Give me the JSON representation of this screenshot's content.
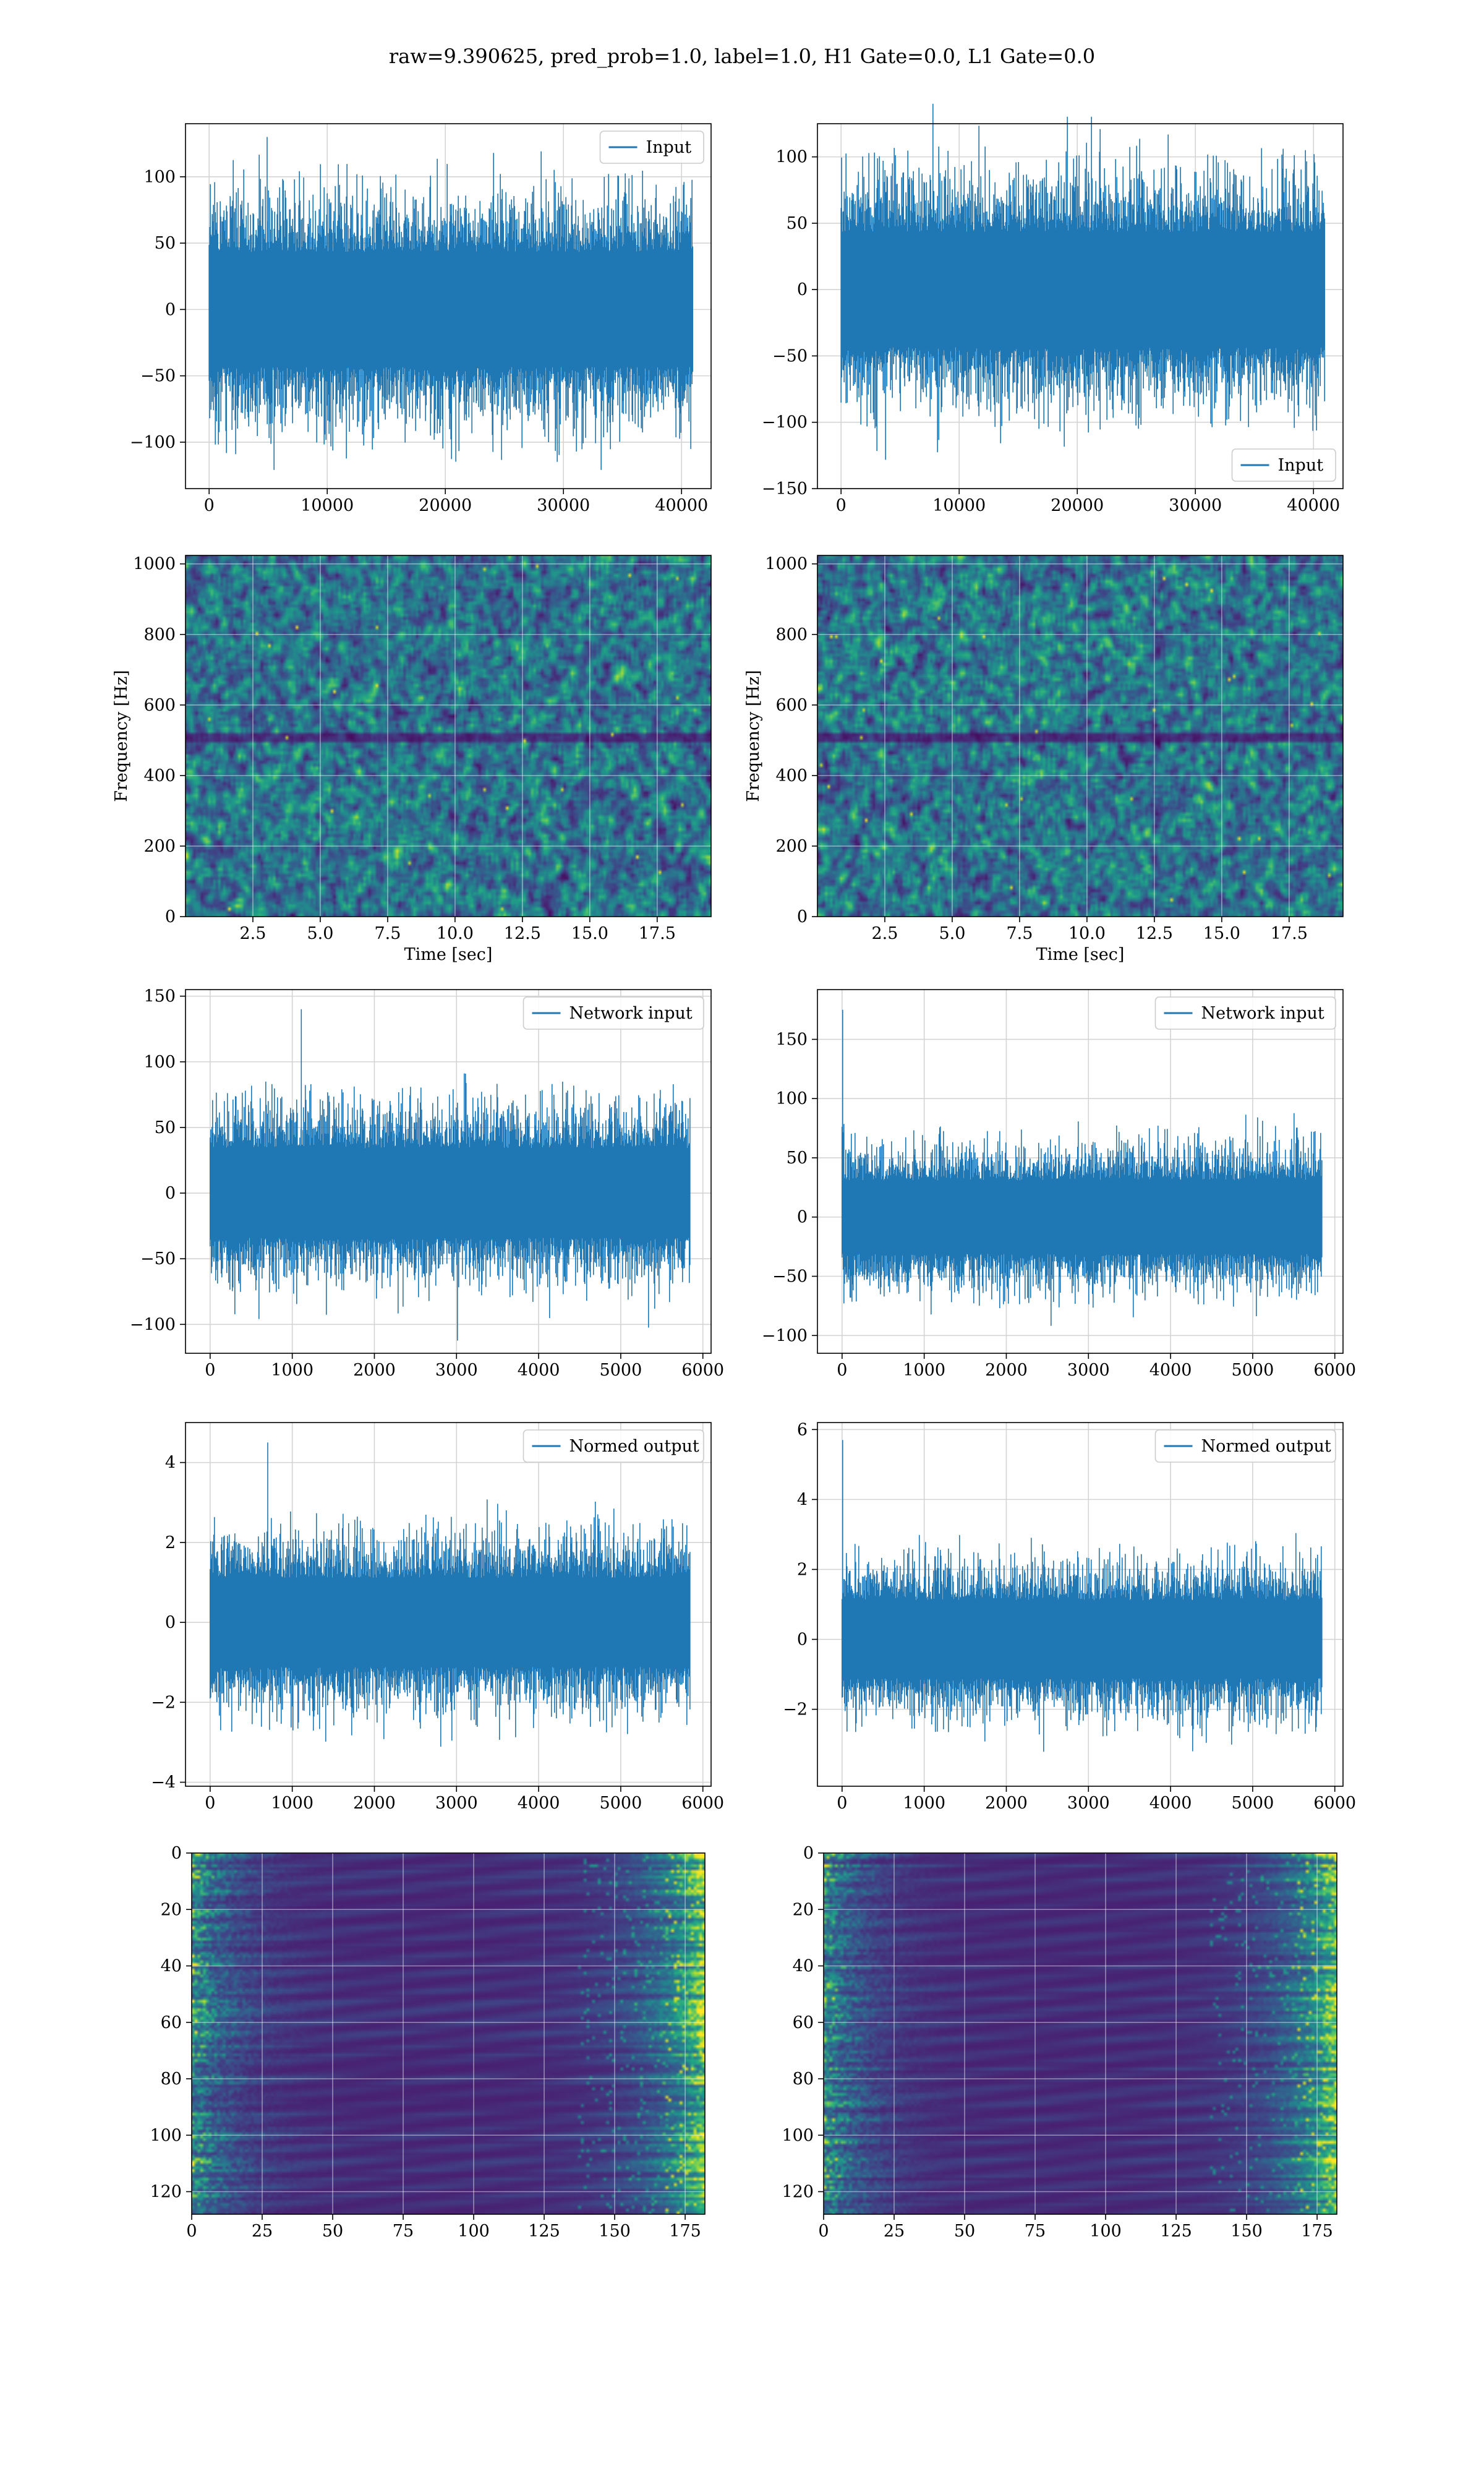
{
  "suptitle": "raw=9.390625, pred_prob=1.0, label=1.0, H1 Gate=0.0, L1 Gate=0.0",
  "colors": {
    "line": "#1f77b4",
    "grid": "#d4d4d4",
    "viridis_low": "#440154",
    "viridis_mid": "#21918c",
    "viridis_high": "#fde725"
  },
  "chart_data": [
    {
      "id": "p1",
      "type": "line",
      "title": "",
      "xlabel": "",
      "ylabel": "",
      "series": [
        {
          "name": "Input",
          "n_points": 40960,
          "amplitude_core": 70,
          "amplitude_peak": 130
        }
      ],
      "xlim": [
        -2000,
        42500
      ],
      "ylim": [
        -135,
        140
      ],
      "xticks": [
        0,
        10000,
        20000,
        30000,
        40000
      ],
      "yticks": [
        -100,
        -50,
        0,
        50,
        100
      ],
      "grid": true,
      "legend": "top-right"
    },
    {
      "id": "p2",
      "type": "line",
      "title": "",
      "xlabel": "",
      "ylabel": "",
      "series": [
        {
          "name": "Input",
          "n_points": 40960,
          "amplitude_core": 70,
          "amplitude_peak": 140
        }
      ],
      "xlim": [
        -2000,
        42500
      ],
      "ylim": [
        -150,
        125
      ],
      "xticks": [
        0,
        10000,
        20000,
        30000,
        40000
      ],
      "yticks": [
        -150,
        -100,
        -50,
        0,
        50,
        100
      ],
      "grid": true,
      "legend": "bottom-right"
    },
    {
      "id": "p3",
      "type": "heatmap",
      "title": "",
      "xlabel": "Time [sec]",
      "ylabel": "Frequency [Hz]",
      "xlim": [
        0,
        19.5
      ],
      "ylim": [
        0,
        1024
      ],
      "xticks": [
        2.5,
        5.0,
        7.5,
        10.0,
        12.5,
        15.0,
        17.5
      ],
      "yticks": [
        0,
        200,
        400,
        600,
        800,
        1000
      ],
      "colormap": "viridis",
      "grid": true
    },
    {
      "id": "p4",
      "type": "heatmap",
      "title": "",
      "xlabel": "Time [sec]",
      "ylabel": "Frequency [Hz]",
      "xlim": [
        0,
        19.5
      ],
      "ylim": [
        0,
        1024
      ],
      "xticks": [
        2.5,
        5.0,
        7.5,
        10.0,
        12.5,
        15.0,
        17.5
      ],
      "yticks": [
        0,
        200,
        400,
        600,
        800,
        1000
      ],
      "colormap": "viridis",
      "grid": true
    },
    {
      "id": "p5",
      "type": "line",
      "title": "",
      "xlabel": "",
      "ylabel": "",
      "series": [
        {
          "name": "Network input",
          "n_points": 5840,
          "amplitude_core": 55,
          "amplitude_peak": 140
        }
      ],
      "xlim": [
        -300,
        6100
      ],
      "ylim": [
        -122,
        155
      ],
      "xticks": [
        0,
        1000,
        2000,
        3000,
        4000,
        5000,
        6000
      ],
      "yticks": [
        -100,
        -50,
        0,
        50,
        100,
        150
      ],
      "grid": true,
      "legend": "top-right"
    },
    {
      "id": "p6",
      "type": "line",
      "title": "",
      "xlabel": "",
      "ylabel": "",
      "series": [
        {
          "name": "Network input",
          "n_points": 5840,
          "amplitude_core": 50,
          "amplitude_peak": 175
        }
      ],
      "xlim": [
        -300,
        6100
      ],
      "ylim": [
        -115,
        192
      ],
      "xticks": [
        0,
        1000,
        2000,
        3000,
        4000,
        5000,
        6000
      ],
      "yticks": [
        -100,
        -50,
        0,
        50,
        100,
        150
      ],
      "grid": true,
      "legend": "top-right"
    },
    {
      "id": "p7",
      "type": "line",
      "title": "",
      "xlabel": "",
      "ylabel": "",
      "series": [
        {
          "name": "Normed output",
          "n_points": 5840,
          "amplitude_core": 1.8,
          "amplitude_peak": 4.5
        }
      ],
      "xlim": [
        -300,
        6100
      ],
      "ylim": [
        -4.1,
        5.0
      ],
      "xticks": [
        0,
        1000,
        2000,
        3000,
        4000,
        5000,
        6000
      ],
      "yticks": [
        -4,
        -2,
        0,
        2,
        4
      ],
      "grid": true,
      "legend": "top-right"
    },
    {
      "id": "p8",
      "type": "line",
      "title": "",
      "xlabel": "",
      "ylabel": "",
      "series": [
        {
          "name": "Normed output",
          "n_points": 5840,
          "amplitude_core": 1.8,
          "amplitude_peak": 5.7
        }
      ],
      "xlim": [
        -300,
        6100
      ],
      "ylim": [
        -4.2,
        6.2
      ],
      "xticks": [
        0,
        1000,
        2000,
        3000,
        4000,
        5000,
        6000
      ],
      "yticks": [
        -2,
        0,
        2,
        4,
        6
      ],
      "grid": true,
      "legend": "top-right"
    },
    {
      "id": "p9",
      "type": "heatmap",
      "title": "",
      "xlabel": "",
      "ylabel": "",
      "xlim": [
        0,
        182
      ],
      "ylim": [
        128,
        0
      ],
      "xticks": [
        0,
        25,
        50,
        75,
        100,
        125,
        150,
        175
      ],
      "yticks": [
        0,
        20,
        40,
        60,
        80,
        100,
        120
      ],
      "colormap": "viridis",
      "grid": true
    },
    {
      "id": "p10",
      "type": "heatmap",
      "title": "",
      "xlabel": "",
      "ylabel": "",
      "xlim": [
        0,
        182
      ],
      "ylim": [
        128,
        0
      ],
      "xticks": [
        0,
        25,
        50,
        75,
        100,
        125,
        150,
        175
      ],
      "yticks": [
        0,
        20,
        40,
        60,
        80,
        100,
        120
      ],
      "colormap": "viridis",
      "grid": true
    }
  ]
}
